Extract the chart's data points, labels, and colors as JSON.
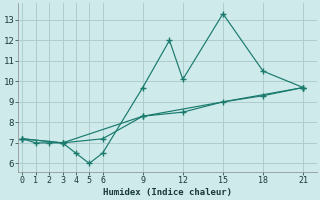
{
  "xlabel": "Humidex (Indice chaleur)",
  "bg_color": "#ceeaea",
  "grid_color": "#b0cdcd",
  "line_color": "#1a7a6e",
  "xlim": [
    -0.3,
    22
  ],
  "ylim": [
    5.6,
    13.8
  ],
  "xticks": [
    0,
    1,
    2,
    3,
    4,
    5,
    6,
    9,
    12,
    15,
    18,
    21
  ],
  "yticks": [
    6,
    7,
    8,
    9,
    10,
    11,
    12,
    13
  ],
  "series": [
    {
      "x": [
        0,
        1,
        2,
        3,
        4,
        5,
        6,
        9,
        11,
        12,
        15,
        18,
        21
      ],
      "y": [
        7.2,
        7.0,
        7.0,
        7.0,
        6.5,
        6.0,
        6.5,
        9.7,
        12.0,
        10.1,
        13.3,
        10.5,
        9.7
      ]
    },
    {
      "x": [
        0,
        3,
        6,
        9,
        12,
        15,
        18,
        21
      ],
      "y": [
        7.2,
        7.0,
        7.2,
        8.3,
        8.5,
        9.0,
        9.3,
        9.7
      ]
    },
    {
      "x": [
        0,
        3,
        9,
        21
      ],
      "y": [
        7.2,
        7.0,
        8.3,
        9.7
      ]
    }
  ]
}
